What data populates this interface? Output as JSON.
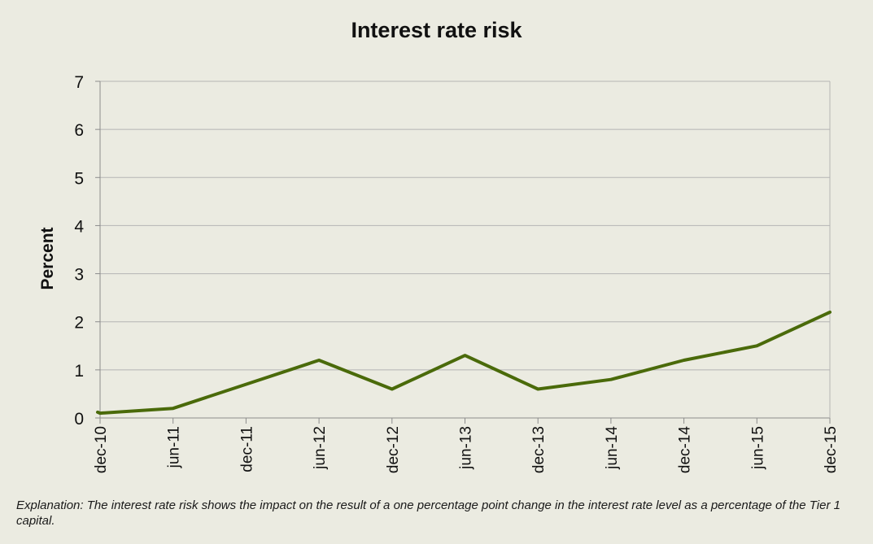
{
  "chart_data": {
    "type": "line",
    "title": "Interest rate risk",
    "ylabel": "Percent",
    "xlabel": "",
    "ylim": [
      0,
      7
    ],
    "yticks": [
      0,
      1,
      2,
      3,
      4,
      5,
      6,
      7
    ],
    "categories": [
      "dec-10",
      "jun-11",
      "dec-11",
      "jun-12",
      "dec-12",
      "jun-13",
      "dec-13",
      "jun-14",
      "dec-14",
      "jun-15",
      "dec-15"
    ],
    "series": [
      {
        "color": "#4a6a0a",
        "points": [
          {
            "x": "dec-10",
            "y": 0.12
          },
          {
            "x": "dec-10",
            "y": 0.1
          },
          {
            "x": "jun-11",
            "y": 0.2
          },
          {
            "x": "dec-11",
            "y": 0.7
          },
          {
            "x": "jun-12",
            "y": 1.2
          },
          {
            "x": "dec-12",
            "y": 0.6
          },
          {
            "x": "jun-13",
            "y": 1.3
          },
          {
            "x": "dec-13",
            "y": 0.6
          },
          {
            "x": "jun-14",
            "y": 0.8
          },
          {
            "x": "dec-14",
            "y": 1.2
          },
          {
            "x": "jun-15",
            "y": 1.5
          },
          {
            "x": "dec-15",
            "y": 2.2
          }
        ]
      }
    ],
    "grid": true,
    "gridline_color": "#b4b4b4",
    "axis_color": "#8c8c8c"
  },
  "footer": {
    "explanation": "Explanation: The interest rate risk shows the impact on the result of a one percentage point change in the interest rate level as a percentage of the Tier 1 capital."
  }
}
